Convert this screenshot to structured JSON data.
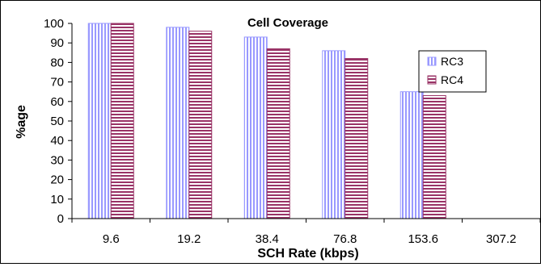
{
  "chart_data": {
    "type": "bar",
    "title": "Cell Coverage",
    "xlabel": "SCH Rate (kbps)",
    "ylabel": "%age",
    "categories": [
      "9.6",
      "19.2",
      "38.4",
      "76.8",
      "153.6",
      "307.2"
    ],
    "series": [
      {
        "name": "RC3",
        "values": [
          100,
          98,
          93,
          86,
          65,
          0
        ],
        "pattern": "vertical-stripes",
        "color": "#9999FF"
      },
      {
        "name": "RC4",
        "values": [
          100,
          96,
          87,
          82,
          63,
          0
        ],
        "pattern": "horizontal-stripes",
        "color": "#993366"
      }
    ],
    "ylim": [
      0,
      100
    ],
    "yticks": [
      0,
      10,
      20,
      30,
      40,
      50,
      60,
      70,
      80,
      90,
      100
    ],
    "grid": false,
    "legend_position": "right"
  }
}
